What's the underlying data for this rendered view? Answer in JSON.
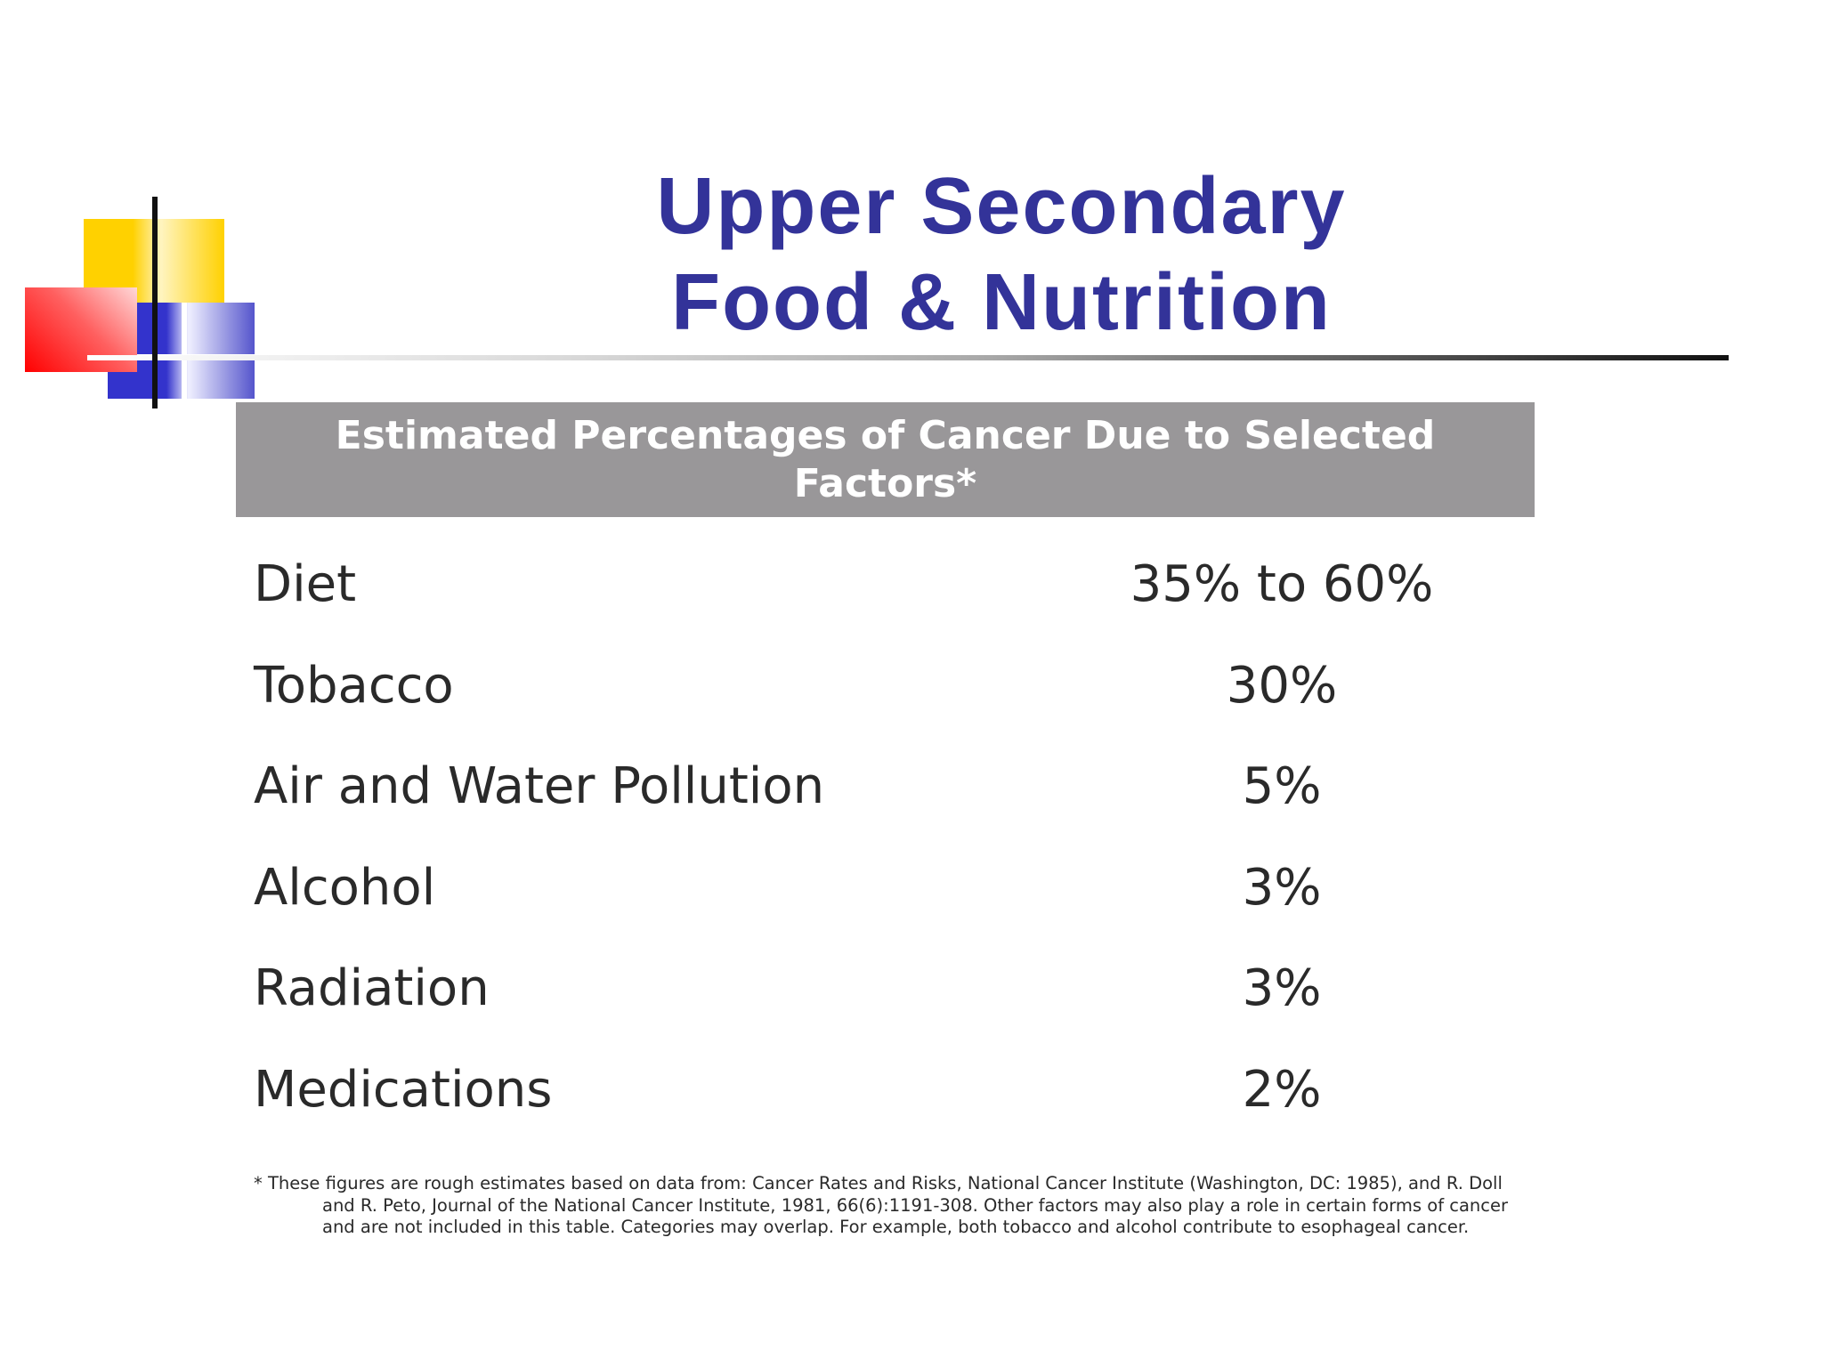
{
  "slide": {
    "title_line1": "Upper Secondary",
    "title_line2": "Food & Nutrition"
  },
  "table": {
    "header": "Estimated Percentages of Cancer Due to Selected Factors*",
    "rows": [
      {
        "factor": "Diet",
        "percent": "35% to 60%"
      },
      {
        "factor": "Tobacco",
        "percent": "30%"
      },
      {
        "factor": "Air and Water Pollution",
        "percent": "5%"
      },
      {
        "factor": "Alcohol",
        "percent": "3%"
      },
      {
        "factor": "Radiation",
        "percent": "3%"
      },
      {
        "factor": "Medications",
        "percent": "2%"
      }
    ]
  },
  "footnote": "* These figures are rough estimates based on data from: Cancer Rates and Risks, National Cancer Institute (Washington, DC: 1985), and R. Doll and R. Peto, Journal of the National Cancer Institute, 1981, 66(6):1191-308. Other factors may also play a role in certain forms of cancer and are not included in this table. Categories may overlap. For example, both tobacco and alcohol contribute to esophageal cancer.",
  "colors": {
    "title": "#333399",
    "header_bg": "#999799",
    "header_text": "#ffffff",
    "body_text": "#2a2a2a",
    "deco_yellow": "#ffd100",
    "deco_blue": "#3333cc",
    "deco_red": "#ff0000"
  }
}
